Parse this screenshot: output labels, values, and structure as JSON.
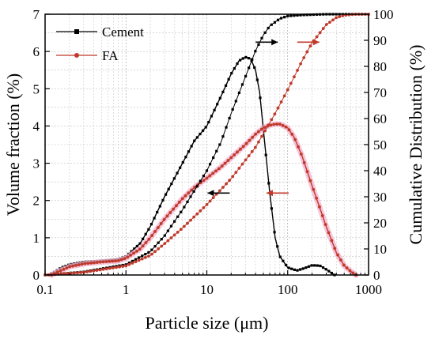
{
  "chart_data": {
    "type": "line",
    "xlabel": "Particle size (μm)",
    "ylabel_left": "Volume fraction (%)",
    "ylabel_right": "Cumulative Distribution (%)",
    "x_scale": "log",
    "xlim": [
      0.1,
      1000
    ],
    "ylim_left": [
      0,
      7
    ],
    "ylim_right": [
      0,
      100
    ],
    "x_ticks": [
      0.1,
      1,
      10,
      100,
      1000
    ],
    "x_tick_labels": [
      "0.1",
      "1",
      "10",
      "100",
      "1000"
    ],
    "y_left_ticks": [
      0,
      1,
      2,
      3,
      4,
      5,
      6,
      7
    ],
    "y_right_ticks": [
      0,
      10,
      20,
      30,
      40,
      50,
      60,
      70,
      80,
      90,
      100
    ],
    "grid": true,
    "legend_position": "top-left",
    "series": [
      {
        "name": "Cement",
        "kind": "volume-fraction",
        "axis": "left",
        "color": "#000000",
        "marker": "square",
        "points": [
          [
            0.11,
            0.0
          ],
          [
            0.13,
            0.08
          ],
          [
            0.16,
            0.2
          ],
          [
            0.2,
            0.28
          ],
          [
            0.3,
            0.35
          ],
          [
            0.5,
            0.38
          ],
          [
            0.8,
            0.42
          ],
          [
            1.0,
            0.5
          ],
          [
            1.5,
            0.85
          ],
          [
            2.0,
            1.3
          ],
          [
            3.0,
            2.1
          ],
          [
            5.0,
            3.0
          ],
          [
            7.0,
            3.6
          ],
          [
            10.0,
            4.0
          ],
          [
            15.0,
            4.8
          ],
          [
            20.0,
            5.4
          ],
          [
            25.0,
            5.75
          ],
          [
            30.0,
            5.85
          ],
          [
            35.0,
            5.8
          ],
          [
            40.0,
            5.5
          ],
          [
            45.0,
            4.9
          ],
          [
            50.0,
            3.9
          ],
          [
            60.0,
            2.2
          ],
          [
            70.0,
            1.0
          ],
          [
            80.0,
            0.5
          ],
          [
            100.0,
            0.2
          ],
          [
            130.0,
            0.12
          ],
          [
            160.0,
            0.18
          ],
          [
            200.0,
            0.26
          ],
          [
            250.0,
            0.25
          ],
          [
            300.0,
            0.15
          ],
          [
            380.0,
            0.0
          ]
        ]
      },
      {
        "name": "FA",
        "kind": "volume-fraction",
        "axis": "left",
        "color": "#c0392b",
        "marker": "circle",
        "points": [
          [
            0.12,
            0.0
          ],
          [
            0.15,
            0.1
          ],
          [
            0.2,
            0.22
          ],
          [
            0.3,
            0.3
          ],
          [
            0.5,
            0.35
          ],
          [
            0.8,
            0.38
          ],
          [
            1.0,
            0.45
          ],
          [
            1.5,
            0.7
          ],
          [
            2.0,
            1.0
          ],
          [
            3.0,
            1.5
          ],
          [
            5.0,
            2.05
          ],
          [
            7.0,
            2.35
          ],
          [
            10.0,
            2.6
          ],
          [
            15.0,
            2.9
          ],
          [
            20.0,
            3.15
          ],
          [
            30.0,
            3.5
          ],
          [
            40.0,
            3.78
          ],
          [
            50.0,
            3.95
          ],
          [
            60.0,
            4.02
          ],
          [
            70.0,
            4.05
          ],
          [
            80.0,
            4.05
          ],
          [
            100.0,
            3.95
          ],
          [
            120.0,
            3.7
          ],
          [
            150.0,
            3.2
          ],
          [
            200.0,
            2.4
          ],
          [
            250.0,
            1.8
          ],
          [
            300.0,
            1.3
          ],
          [
            400.0,
            0.6
          ],
          [
            500.0,
            0.25
          ],
          [
            600.0,
            0.1
          ],
          [
            700.0,
            0.0
          ]
        ]
      },
      {
        "name": "Cement",
        "kind": "cumulative",
        "axis": "right",
        "color": "#000000",
        "marker": "square",
        "points": [
          [
            0.1,
            0.0
          ],
          [
            0.3,
            1.2
          ],
          [
            1.0,
            4.0
          ],
          [
            2.0,
            9.0
          ],
          [
            3.0,
            15.0
          ],
          [
            5.0,
            25.0
          ],
          [
            10.0,
            40.0
          ],
          [
            15.0,
            51.0
          ],
          [
            20.0,
            62.0
          ],
          [
            30.0,
            76.0
          ],
          [
            40.0,
            86.0
          ],
          [
            50.0,
            92.0
          ],
          [
            60.0,
            95.5
          ],
          [
            80.0,
            98.3
          ],
          [
            100.0,
            99.3
          ],
          [
            150.0,
            99.7
          ],
          [
            300.0,
            100.0
          ],
          [
            1000.0,
            100.0
          ]
        ]
      },
      {
        "name": "FA",
        "kind": "cumulative",
        "axis": "right",
        "color": "#c0392b",
        "marker": "circle",
        "points": [
          [
            0.1,
            0.0
          ],
          [
            0.3,
            1.0
          ],
          [
            1.0,
            3.5
          ],
          [
            2.0,
            7.5
          ],
          [
            3.0,
            12.0
          ],
          [
            5.0,
            18.0
          ],
          [
            10.0,
            27.0
          ],
          [
            20.0,
            37.0
          ],
          [
            40.0,
            49.0
          ],
          [
            70.0,
            62.0
          ],
          [
            100.0,
            71.0
          ],
          [
            150.0,
            82.0
          ],
          [
            200.0,
            89.0
          ],
          [
            300.0,
            96.0
          ],
          [
            400.0,
            98.7
          ],
          [
            500.0,
            99.6
          ],
          [
            700.0,
            100.0
          ],
          [
            1000.0,
            100.0
          ]
        ]
      }
    ],
    "annotations": [
      {
        "type": "arrow",
        "color": "#000000",
        "direction": "left",
        "at": [
          14,
          2.2
        ]
      },
      {
        "type": "arrow",
        "color": "#c0392b",
        "direction": "left",
        "at": [
          75,
          2.2
        ]
      },
      {
        "type": "arrow",
        "color": "#000000",
        "direction": "right",
        "at": [
          55,
          6.25
        ]
      },
      {
        "type": "arrow",
        "color": "#c0392b",
        "direction": "right",
        "at": [
          180,
          6.25
        ]
      }
    ]
  }
}
